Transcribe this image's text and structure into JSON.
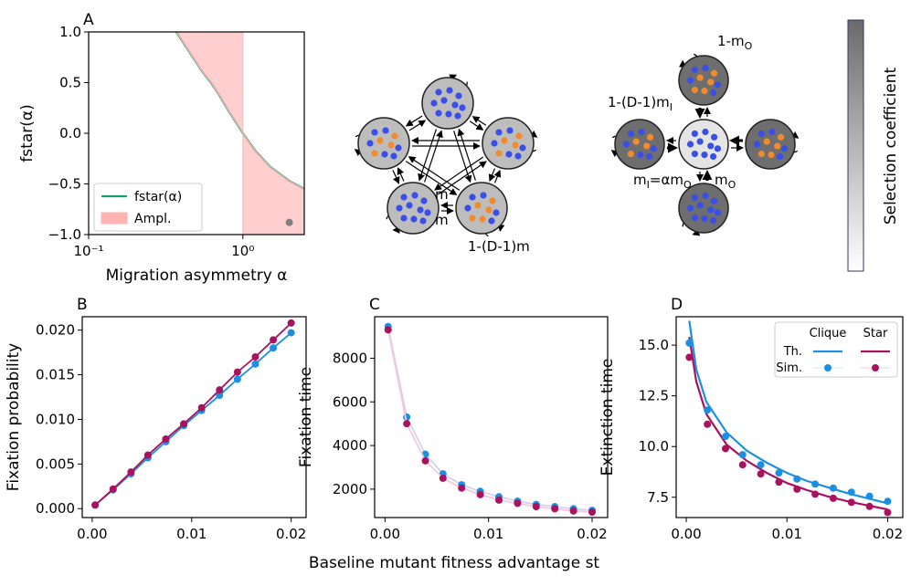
{
  "chart_data": [
    {
      "type": "line",
      "panel": "A",
      "xlabel": "Migration asymmetry α",
      "ylabel": "fstar(α)",
      "xscale": "log",
      "xlim": [
        0.1,
        2.5
      ],
      "ylim": [
        -1,
        1
      ],
      "xticks": [
        {
          "value": 0.1,
          "label": "10⁻¹"
        },
        {
          "value": 1,
          "label": "10⁰"
        }
      ],
      "yticks": [
        {
          "value": -1,
          "label": "−1.0"
        },
        {
          "value": -0.5,
          "label": "−0.5"
        },
        {
          "value": 0,
          "label": "0.0"
        },
        0.5,
        {
          "value": 1,
          "label": "1.0"
        }
      ],
      "legend": "lower left",
      "series": [
        {
          "name": "fstar(α)",
          "kind": "line",
          "color": "#1a9e6e",
          "x": [
            0.37,
            0.45,
            0.55,
            0.62,
            0.7,
            0.8,
            0.9,
            1.0,
            1.2,
            1.5,
            2.0,
            2.5
          ],
          "values": [
            1.0,
            0.8,
            0.6,
            0.5,
            0.38,
            0.23,
            0.11,
            0,
            -0.17,
            -0.33,
            -0.47,
            -0.55
          ]
        },
        {
          "name": "Ampl.",
          "kind": "shade",
          "color": "#ffb3b3"
        },
        {
          "kind": "scatter",
          "color": "#808080",
          "x": [
            2
          ],
          "values": [
            -0.88
          ]
        }
      ]
    },
    {
      "type": "line",
      "panel": "B",
      "ylabel": "Fixation probability",
      "xlim": [
        -0.001,
        0.0215
      ],
      "ylim": [
        -0.001,
        0.0215
      ],
      "xticks": [
        {
          "value": 0,
          "label": "0.00"
        },
        0.01,
        0.02
      ],
      "yticks": [
        {
          "value": 0,
          "label": "0.000"
        },
        0.005,
        {
          "value": 0.01,
          "label": "0.010"
        },
        0.015,
        {
          "value": 0.02,
          "label": "0.020"
        }
      ],
      "x": [
        0.0003,
        0.0021,
        0.0039,
        0.0056,
        0.0074,
        0.0092,
        0.011,
        0.0128,
        0.0146,
        0.0164,
        0.0182,
        0.02
      ],
      "series": [
        {
          "kind": "linemarker",
          "color": "#1a8fe3",
          "values": [
            0.0004,
            0.0021,
            0.0039,
            0.0057,
            0.0075,
            0.0093,
            0.011,
            0.0127,
            0.0145,
            0.0162,
            0.018,
            0.0197
          ]
        },
        {
          "kind": "linemarker",
          "color": "#a8125e",
          "values": [
            0.0004,
            0.0022,
            0.0041,
            0.006,
            0.0078,
            0.0095,
            0.0113,
            0.0133,
            0.0153,
            0.017,
            0.0189,
            0.0208
          ]
        }
      ]
    },
    {
      "type": "line",
      "panel": "C",
      "ylabel": "Fixation time",
      "xlim": [
        -0.001,
        0.0215
      ],
      "ylim": [
        700,
        9900
      ],
      "xticks": [
        {
          "value": 0,
          "label": "0.00"
        },
        0.01,
        0.02
      ],
      "yticks": [
        2000,
        4000,
        6000,
        8000
      ],
      "x": [
        0.0003,
        0.0021,
        0.0039,
        0.0056,
        0.0074,
        0.0092,
        0.011,
        0.0128,
        0.0146,
        0.0164,
        0.0182,
        0.02
      ],
      "series": [
        {
          "kind": "linemarker",
          "color": "#1a8fe3",
          "line_color": "#d6d2ec",
          "values": [
            9450,
            5300,
            3600,
            2700,
            2200,
            1900,
            1650,
            1450,
            1300,
            1200,
            1100,
            1030
          ]
        },
        {
          "kind": "linemarker",
          "color": "#a8125e",
          "line_color": "#f3c9de",
          "values": [
            9300,
            5000,
            3300,
            2500,
            2050,
            1750,
            1500,
            1350,
            1200,
            1100,
            1000,
            950
          ]
        }
      ]
    },
    {
      "type": "line",
      "panel": "D",
      "ylabel": "Extinction time",
      "xlim": [
        -0.001,
        0.0215
      ],
      "ylim": [
        6.5,
        16.4
      ],
      "xticks": [
        {
          "value": 0,
          "label": "0.00"
        },
        0.01,
        0.02
      ],
      "yticks": [
        7.5,
        {
          "value": 10,
          "label": "10.0"
        },
        12.5,
        {
          "value": 15,
          "label": "15.0"
        }
      ],
      "x": [
        0.0003,
        0.0021,
        0.0039,
        0.0056,
        0.0074,
        0.0092,
        0.011,
        0.0128,
        0.0146,
        0.0164,
        0.0182,
        0.02
      ],
      "legend": {
        "columns": [
          "Clique",
          "Star"
        ],
        "rows": [
          "Th.",
          "Sim."
        ]
      },
      "series": [
        {
          "kind": "line",
          "color": "#1a8fe3",
          "x": [
            0.0003,
            0.001,
            0.002,
            0.004,
            0.006,
            0.008,
            0.01,
            0.012,
            0.014,
            0.016,
            0.018,
            0.02
          ],
          "values": [
            16.2,
            13.8,
            12.2,
            10.7,
            9.8,
            9.2,
            8.7,
            8.3,
            8.0,
            7.7,
            7.45,
            7.2
          ]
        },
        {
          "kind": "line",
          "color": "#a8125e",
          "x": [
            0.0003,
            0.001,
            0.002,
            0.004,
            0.006,
            0.008,
            0.01,
            0.012,
            0.014,
            0.016,
            0.018,
            0.02
          ],
          "values": [
            15.4,
            13.2,
            11.6,
            10.1,
            9.3,
            8.7,
            8.2,
            7.85,
            7.55,
            7.3,
            7.1,
            6.9
          ]
        },
        {
          "kind": "scatter",
          "color": "#1a8fe3",
          "values": [
            15.1,
            11.8,
            10.5,
            9.6,
            9.1,
            8.7,
            8.4,
            8.15,
            7.95,
            7.75,
            7.55,
            7.3
          ]
        },
        {
          "kind": "scatter",
          "color": "#a8125e",
          "values": [
            14.4,
            11.1,
            9.9,
            9.1,
            8.65,
            8.25,
            7.9,
            7.65,
            7.45,
            7.25,
            7.05,
            6.75
          ]
        }
      ]
    }
  ],
  "shared_xlabel": "Baseline mutant fitness advantage st",
  "diagrams": {
    "clique": {
      "labels": [
        [
          "m"
        ],
        [
          "m"
        ],
        [
          "1-(D-1)m"
        ]
      ]
    },
    "star": {
      "labels": [
        [
          "1-m",
          "O"
        ],
        [
          "1-(D-1)m",
          "I"
        ],
        [
          "m",
          "I",
          "=αm",
          "O"
        ],
        [
          "m",
          "O"
        ]
      ]
    }
  },
  "colorbar": {
    "label": "Selection coefficient"
  }
}
